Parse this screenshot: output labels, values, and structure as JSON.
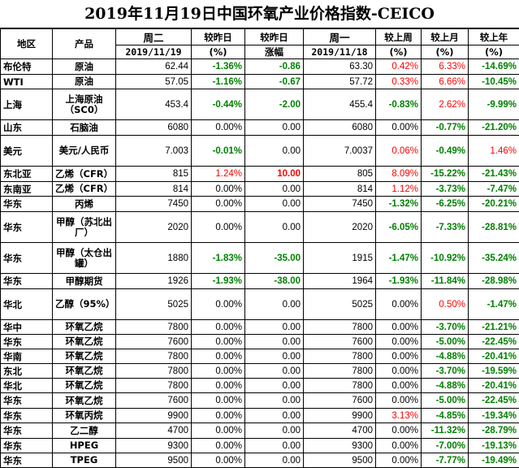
{
  "title": "2019年11月19日中国环氧产业价格指数-CEICO",
  "header": {
    "row1": [
      "地区",
      "产品",
      "周二",
      "较昨日",
      "较昨日",
      "周一",
      "较上周",
      "较上月",
      "较上年"
    ],
    "row2": [
      "2019/11/19",
      "(%)",
      "涨幅",
      "2019/11/18",
      "(%)",
      "(%)",
      "(%)"
    ]
  },
  "rows": [
    [
      "布伦特",
      "原油",
      "62.44",
      "-1.36%",
      "-0.86",
      "63.30",
      "0.42%",
      "6.33%",
      "-14.69%"
    ],
    [
      "WTI",
      "原油",
      "57.05",
      "-1.16%",
      "-0.67",
      "57.72",
      "0.33%",
      "6.66%",
      "-10.45%"
    ],
    [
      "上海",
      "上海原油（SC0）",
      "453.4",
      "-0.44%",
      "-2.00",
      "455.4",
      "-0.83%",
      "2.62%",
      "-9.99%"
    ],
    [
      "山东",
      "石脑油",
      "6080",
      "0.00%",
      "0.00",
      "6080",
      "0.00%",
      "-0.77%",
      "-21.20%"
    ],
    [
      "美元",
      "美元/人民币",
      "7.003",
      "-0.01%",
      "0.00",
      "7.0037",
      "0.06%",
      "-0.49%",
      "1.46%"
    ],
    [
      "东北亚",
      "乙烯（CFR）",
      "815",
      "1.24%",
      "10.00",
      "805",
      "8.09%",
      "-15.22%",
      "-21.43%"
    ],
    [
      "东南亚",
      "乙烯（CFR）",
      "814",
      "0.00%",
      "0.00",
      "814",
      "1.12%",
      "-3.73%",
      "-7.47%"
    ],
    [
      "华东",
      "丙烯",
      "7450",
      "0.00%",
      "0.00",
      "7450",
      "-1.32%",
      "-6.25%",
      "-20.21%"
    ],
    [
      "华东",
      "甲醇（苏北出厂）",
      "2020",
      "0.00%",
      "0.00",
      "2020",
      "-6.05%",
      "-7.33%",
      "-28.81%"
    ],
    [
      "华东",
      "甲醇（太仓出罐）",
      "1880",
      "-1.83%",
      "-35.00",
      "1915",
      "-1.47%",
      "-10.92%",
      "-35.24%"
    ],
    [
      "华东",
      "甲醇期货",
      "1926",
      "-1.93%",
      "-38.00",
      "1964",
      "-1.93%",
      "-11.84%",
      "-28.98%"
    ],
    [
      "华北",
      "乙醇（95%）",
      "5025",
      "0.00%",
      "0.00",
      "5025",
      "0.00%",
      "0.50%",
      "-1.47%"
    ],
    [
      "华中",
      "环氧乙烷",
      "7800",
      "0.00%",
      "0.00",
      "7800",
      "0.00%",
      "-3.70%",
      "-21.21%"
    ],
    [
      "华东",
      "环氧乙烷",
      "7600",
      "0.00%",
      "0.00",
      "7600",
      "0.00%",
      "-5.00%",
      "-22.45%"
    ],
    [
      "华南",
      "环氧乙烷",
      "7800",
      "0.00%",
      "0.00",
      "7800",
      "0.00%",
      "-4.88%",
      "-20.41%"
    ],
    [
      "东北",
      "环氧乙烷",
      "7800",
      "0.00%",
      "0.00",
      "7800",
      "0.00%",
      "-3.70%",
      "-19.59%"
    ],
    [
      "华北",
      "环氧乙烷",
      "7800",
      "0.00%",
      "0.00",
      "7800",
      "0.00%",
      "-4.88%",
      "-20.41%"
    ],
    [
      "华东",
      "环氧乙烷",
      "7600",
      "0.00%",
      "0.00",
      "7600",
      "0.00%",
      "-5.00%",
      "-22.45%"
    ],
    [
      "华东",
      "环氧丙烷",
      "9900",
      "0.00%",
      "0.00",
      "9900",
      "3.13%",
      "-4.85%",
      "-19.34%"
    ],
    [
      "华东",
      "乙二醇",
      "4700",
      "0.00%",
      "0.00",
      "4700",
      "0.00%",
      "-11.32%",
      "-28.79%"
    ],
    [
      "华东",
      "HPEG",
      "9300",
      "0.00%",
      "0.00",
      "9300",
      "0.00%",
      "-7.00%",
      "-19.13%"
    ],
    [
      "华东",
      "TPEG",
      "9500",
      "0.00%",
      "0.00",
      "9500",
      "0.00%",
      "-7.77%",
      "-19.49%"
    ]
  ],
  "colors": {
    "positive": "#ff0000",
    "negative": "#008000",
    "border": "#000000"
  }
}
